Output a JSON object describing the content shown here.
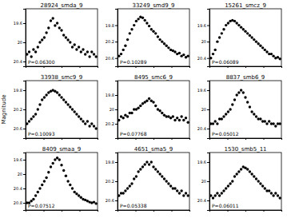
{
  "chart_data": [
    {
      "type": "scatter",
      "title": "28924_smda_9",
      "annotation": "P=0.06300",
      "color": "#000000",
      "marker": "circle",
      "tick_labels": "y",
      "x": [
        0.02,
        0.05,
        0.08,
        0.11,
        0.14,
        0.17,
        0.2,
        0.23,
        0.26,
        0.29,
        0.32,
        0.35,
        0.38,
        0.41,
        0.44,
        0.47,
        0.5,
        0.53,
        0.56,
        0.59,
        0.62,
        0.65,
        0.68,
        0.71,
        0.74,
        0.77,
        0.8,
        0.83,
        0.86,
        0.89,
        0.92,
        0.95,
        0.98
      ],
      "values": [
        20.25,
        20.2,
        20.3,
        20.15,
        20.2,
        20.1,
        20.0,
        19.95,
        19.9,
        19.8,
        19.7,
        19.55,
        19.5,
        19.65,
        19.6,
        19.7,
        19.75,
        19.85,
        19.9,
        19.95,
        20.0,
        20.1,
        20.05,
        20.15,
        20.1,
        20.2,
        20.15,
        20.25,
        20.2,
        20.3,
        20.2,
        20.25,
        20.3
      ],
      "xlim": [
        0,
        1
      ],
      "xticks": [
        0,
        0.25,
        0.5,
        0.75,
        1
      ],
      "ylim": [
        20.5,
        19.3
      ],
      "yticks": [
        20.4,
        20.0,
        19.6
      ]
    },
    {
      "type": "scatter",
      "title": "33249_smd9_9",
      "annotation": "P=0.10289",
      "color": "#000000",
      "marker": "circle",
      "tick_labels": "y",
      "x": [
        0.02,
        0.05,
        0.08,
        0.11,
        0.14,
        0.17,
        0.2,
        0.23,
        0.26,
        0.29,
        0.32,
        0.35,
        0.38,
        0.41,
        0.44,
        0.47,
        0.5,
        0.53,
        0.56,
        0.59,
        0.62,
        0.65,
        0.68,
        0.71,
        0.74,
        0.77,
        0.8,
        0.83,
        0.86,
        0.89,
        0.92,
        0.95,
        0.98
      ],
      "values": [
        20.55,
        20.5,
        20.4,
        20.3,
        20.15,
        20.0,
        19.9,
        19.8,
        19.7,
        19.65,
        19.6,
        19.62,
        19.68,
        19.75,
        19.82,
        19.9,
        19.95,
        20.0,
        20.08,
        20.15,
        20.2,
        20.25,
        20.3,
        20.35,
        20.4,
        20.42,
        20.45,
        20.5,
        20.48,
        20.55,
        20.52,
        20.58,
        20.55
      ],
      "xlim": [
        0,
        1
      ],
      "xticks": [
        0,
        0.25,
        0.5,
        0.75,
        1
      ],
      "ylim": [
        20.8,
        19.4
      ],
      "yticks": [
        20.6,
        20.2,
        19.8
      ]
    },
    {
      "type": "scatter",
      "title": "15261_smcz_9",
      "annotation": "P=0.06089",
      "color": "#000000",
      "marker": "circle",
      "tick_labels": "y",
      "x": [
        0.02,
        0.05,
        0.08,
        0.11,
        0.14,
        0.17,
        0.2,
        0.23,
        0.26,
        0.29,
        0.32,
        0.35,
        0.38,
        0.41,
        0.44,
        0.47,
        0.5,
        0.53,
        0.56,
        0.59,
        0.62,
        0.65,
        0.68,
        0.71,
        0.74,
        0.77,
        0.8,
        0.83,
        0.86,
        0.89,
        0.92,
        0.95,
        0.98
      ],
      "values": [
        20.4,
        20.3,
        20.2,
        20.0,
        19.9,
        19.8,
        19.7,
        19.6,
        19.55,
        19.5,
        19.48,
        19.5,
        19.55,
        19.6,
        19.65,
        19.7,
        19.75,
        19.8,
        19.85,
        19.9,
        19.95,
        20.0,
        20.05,
        20.1,
        20.15,
        20.2,
        20.25,
        20.3,
        20.3,
        20.35,
        20.4,
        20.38,
        20.42
      ],
      "xlim": [
        0,
        1
      ],
      "xticks": [
        0,
        0.25,
        0.5,
        0.75,
        1
      ],
      "ylim": [
        20.6,
        19.2
      ],
      "yticks": [
        20.4,
        20.0,
        19.6
      ]
    },
    {
      "type": "scatter",
      "title": "33938_smc9_9",
      "annotation": "P=0.10093",
      "y_label": "Magnitude",
      "color": "#000000",
      "marker": "circle",
      "tick_labels": "y",
      "x": [
        0.02,
        0.05,
        0.08,
        0.11,
        0.14,
        0.17,
        0.2,
        0.23,
        0.26,
        0.29,
        0.32,
        0.35,
        0.38,
        0.41,
        0.44,
        0.47,
        0.5,
        0.53,
        0.56,
        0.59,
        0.62,
        0.65,
        0.68,
        0.71,
        0.74,
        0.77,
        0.8,
        0.83,
        0.86,
        0.89,
        0.92,
        0.95,
        0.98
      ],
      "values": [
        20.5,
        20.45,
        20.4,
        20.35,
        20.3,
        20.2,
        20.1,
        20.0,
        19.95,
        19.9,
        19.85,
        19.82,
        19.8,
        19.82,
        19.85,
        19.9,
        19.95,
        20.0,
        20.05,
        20.1,
        20.15,
        20.2,
        20.25,
        20.3,
        20.35,
        20.4,
        20.45,
        20.5,
        20.45,
        20.55,
        20.5,
        20.55,
        20.6
      ],
      "xlim": [
        0,
        1
      ],
      "xticks": [
        0,
        0.25,
        0.5,
        0.75,
        1
      ],
      "ylim": [
        20.8,
        19.6
      ],
      "yticks": [
        20.6,
        20.2,
        19.8
      ]
    },
    {
      "type": "scatter",
      "title": "8495_smc6_9",
      "annotation": "P=0.07768",
      "color": "#000000",
      "marker": "circle",
      "tick_labels": "y",
      "x": [
        0.02,
        0.05,
        0.08,
        0.11,
        0.14,
        0.17,
        0.2,
        0.23,
        0.26,
        0.29,
        0.32,
        0.35,
        0.38,
        0.41,
        0.44,
        0.47,
        0.5,
        0.53,
        0.56,
        0.59,
        0.62,
        0.65,
        0.68,
        0.71,
        0.74,
        0.77,
        0.8,
        0.83,
        0.86,
        0.89,
        0.92,
        0.95,
        0.98
      ],
      "values": [
        20.15,
        20.1,
        20.12,
        20.08,
        20.1,
        20.05,
        20.05,
        20.0,
        20.0,
        19.98,
        19.95,
        19.92,
        19.9,
        19.88,
        19.85,
        19.88,
        19.9,
        19.95,
        20.0,
        20.02,
        20.05,
        20.08,
        20.1,
        20.1,
        20.12,
        20.1,
        20.15,
        20.12,
        20.15,
        20.1,
        20.15,
        20.12,
        20.18
      ],
      "xlim": [
        0,
        1
      ],
      "xticks": [
        0,
        0.25,
        0.5,
        0.75,
        1
      ],
      "ylim": [
        20.4,
        19.6
      ],
      "yticks": [
        20.2,
        20.0,
        19.8
      ]
    },
    {
      "type": "scatter",
      "title": "8837_smb6_9",
      "annotation": "P=0.05012",
      "color": "#000000",
      "marker": "circle",
      "tick_labels": "y",
      "x": [
        0.02,
        0.05,
        0.08,
        0.11,
        0.14,
        0.17,
        0.2,
        0.23,
        0.26,
        0.29,
        0.32,
        0.35,
        0.38,
        0.41,
        0.44,
        0.47,
        0.5,
        0.53,
        0.56,
        0.59,
        0.62,
        0.65,
        0.68,
        0.71,
        0.74,
        0.77,
        0.8,
        0.83,
        0.86,
        0.89,
        0.92,
        0.95,
        0.98
      ],
      "values": [
        20.3,
        20.3,
        20.25,
        20.3,
        20.2,
        20.2,
        20.15,
        20.1,
        20.05,
        20.0,
        19.9,
        19.8,
        19.7,
        19.65,
        19.6,
        19.65,
        19.75,
        19.85,
        19.95,
        20.05,
        20.1,
        20.15,
        20.2,
        20.2,
        20.25,
        20.25,
        20.3,
        20.25,
        20.3,
        20.3,
        20.35,
        20.3,
        20.3
      ],
      "xlim": [
        0,
        1
      ],
      "xticks": [
        0,
        0.25,
        0.5,
        0.75,
        1
      ],
      "ylim": [
        20.6,
        19.4
      ],
      "yticks": [
        20.4,
        20.0,
        19.6
      ]
    },
    {
      "type": "scatter",
      "title": "8409_smaa_9",
      "annotation": "P=0.07512",
      "color": "#000000",
      "marker": "circle",
      "tick_labels": "y",
      "x": [
        0.02,
        0.05,
        0.08,
        0.11,
        0.14,
        0.17,
        0.2,
        0.23,
        0.26,
        0.29,
        0.32,
        0.35,
        0.38,
        0.41,
        0.44,
        0.47,
        0.5,
        0.53,
        0.56,
        0.59,
        0.62,
        0.65,
        0.68,
        0.71,
        0.74,
        0.77,
        0.8,
        0.83,
        0.86,
        0.89,
        0.92,
        0.95,
        0.98
      ],
      "values": [
        20.8,
        20.8,
        20.75,
        20.7,
        20.6,
        20.5,
        20.4,
        20.3,
        20.2,
        20.1,
        19.95,
        19.8,
        19.7,
        19.6,
        19.55,
        19.6,
        19.75,
        19.9,
        20.05,
        20.2,
        20.3,
        20.4,
        20.5,
        20.55,
        20.6,
        20.65,
        20.7,
        20.72,
        20.75,
        20.78,
        20.8,
        20.78,
        20.82
      ],
      "xlim": [
        0,
        1
      ],
      "xticks": [
        0,
        0.25,
        0.5,
        0.75,
        1
      ],
      "ylim": [
        21.0,
        19.4
      ],
      "yticks": [
        20.8,
        20.4,
        20.0,
        19.6
      ]
    },
    {
      "type": "scatter",
      "title": "4651_sma5_9",
      "annotation": "P=0.05338",
      "color": "#000000",
      "marker": "circle",
      "tick_labels": "y",
      "x": [
        0.02,
        0.05,
        0.08,
        0.11,
        0.14,
        0.17,
        0.2,
        0.23,
        0.26,
        0.29,
        0.32,
        0.35,
        0.38,
        0.41,
        0.44,
        0.47,
        0.5,
        0.53,
        0.56,
        0.59,
        0.62,
        0.65,
        0.68,
        0.71,
        0.74,
        0.77,
        0.8,
        0.83,
        0.86,
        0.89,
        0.92,
        0.95,
        0.98
      ],
      "values": [
        20.5,
        20.45,
        20.45,
        20.4,
        20.35,
        20.3,
        20.25,
        20.15,
        20.1,
        20.0,
        19.95,
        19.9,
        19.85,
        19.8,
        19.85,
        19.8,
        19.9,
        19.95,
        20.0,
        20.05,
        20.1,
        20.15,
        20.2,
        20.25,
        20.3,
        20.35,
        20.35,
        20.4,
        20.45,
        20.4,
        20.5,
        20.45,
        20.5
      ],
      "xlim": [
        0,
        1
      ],
      "xticks": [
        0,
        0.25,
        0.5,
        0.75,
        1
      ],
      "ylim": [
        20.8,
        19.6
      ],
      "yticks": [
        20.6,
        20.2,
        19.8
      ]
    },
    {
      "type": "scatter",
      "title": "1530_smb5_11",
      "annotation": "P=0.06011",
      "color": "#000000",
      "marker": "circle",
      "tick_labels": "y",
      "x": [
        0.02,
        0.05,
        0.08,
        0.11,
        0.14,
        0.17,
        0.2,
        0.23,
        0.26,
        0.29,
        0.32,
        0.35,
        0.38,
        0.41,
        0.44,
        0.47,
        0.5,
        0.53,
        0.56,
        0.59,
        0.62,
        0.65,
        0.68,
        0.71,
        0.74,
        0.77,
        0.8,
        0.83,
        0.86,
        0.89,
        0.92,
        0.95,
        0.98
      ],
      "values": [
        20.3,
        20.35,
        20.3,
        20.25,
        20.3,
        20.25,
        20.2,
        20.15,
        20.1,
        20.05,
        20.0,
        19.9,
        19.85,
        19.8,
        19.75,
        19.7,
        19.72,
        19.75,
        19.8,
        19.85,
        19.9,
        19.95,
        20.0,
        20.05,
        20.1,
        20.15,
        20.2,
        20.2,
        20.25,
        20.3,
        20.25,
        20.3,
        20.35
      ],
      "xlim": [
        0,
        1
      ],
      "xticks": [
        0,
        0.25,
        0.5,
        0.75,
        1
      ],
      "ylim": [
        20.6,
        19.4
      ],
      "yticks": [
        20.4,
        20.0,
        19.6
      ]
    }
  ]
}
